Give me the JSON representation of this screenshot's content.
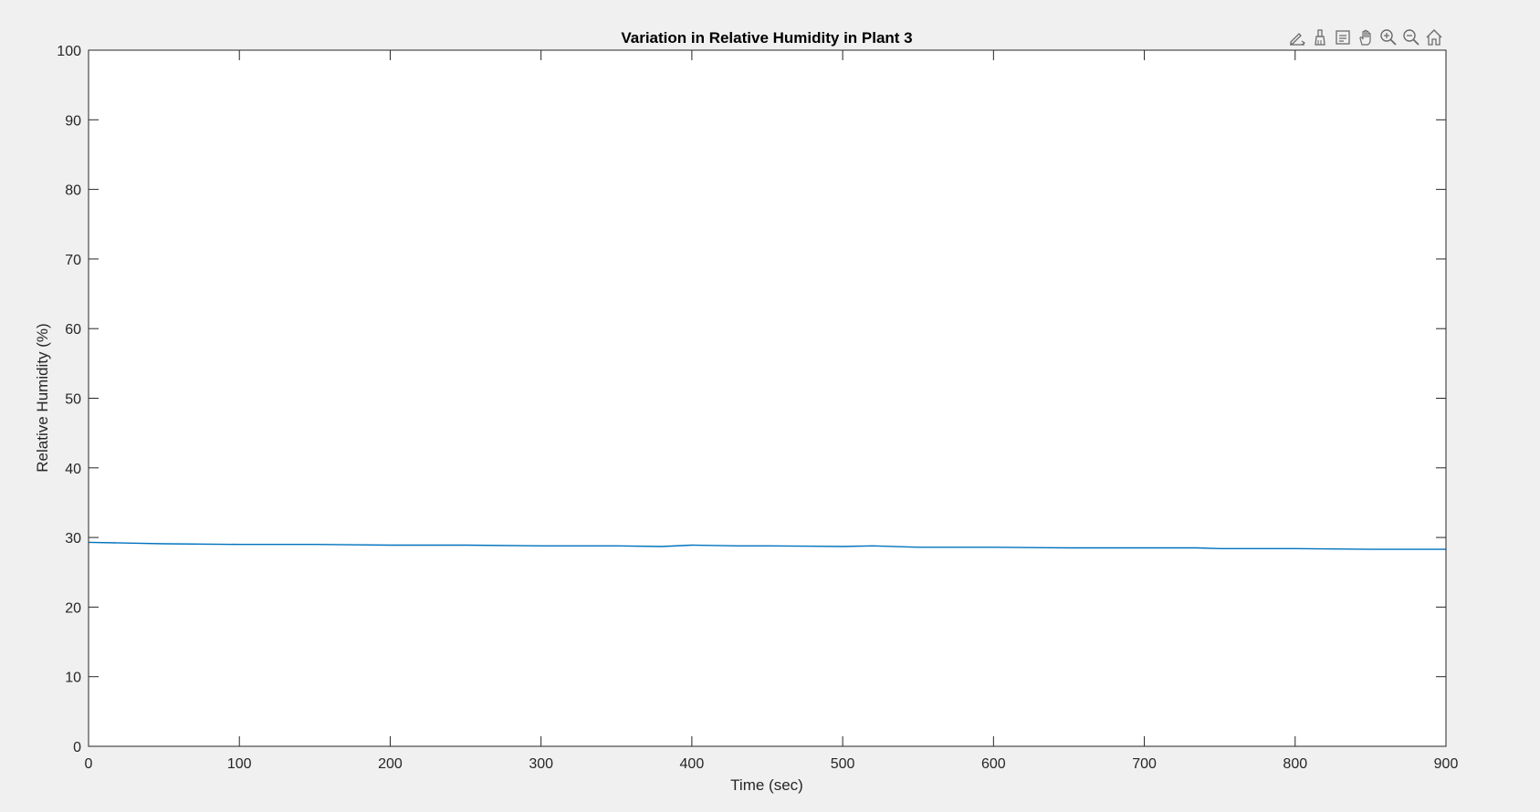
{
  "toolbar": {
    "icons": [
      "edit-icon",
      "brush-icon",
      "data-tips-icon",
      "pan-hand-icon",
      "zoom-in-icon",
      "zoom-out-icon",
      "home-icon"
    ]
  },
  "chart_data": {
    "type": "line",
    "title": "Variation in Relative Humidity in Plant 3",
    "xlabel": "Time (sec)",
    "ylabel": "Relative Humidity (%)",
    "xlim": [
      0,
      900
    ],
    "ylim": [
      0,
      100
    ],
    "xticks": [
      0,
      100,
      200,
      300,
      400,
      500,
      600,
      700,
      800,
      900
    ],
    "yticks": [
      0,
      10,
      20,
      30,
      40,
      50,
      60,
      70,
      80,
      90,
      100
    ],
    "grid": false,
    "series": [
      {
        "color": "#0072bd",
        "x": [
          0,
          25,
          50,
          100,
          150,
          200,
          250,
          300,
          350,
          380,
          400,
          430,
          450,
          500,
          520,
          550,
          600,
          650,
          700,
          735,
          750,
          800,
          850,
          900
        ],
        "y": [
          29.3,
          29.2,
          29.1,
          29.0,
          29.0,
          28.9,
          28.9,
          28.8,
          28.8,
          28.7,
          28.9,
          28.8,
          28.8,
          28.7,
          28.8,
          28.6,
          28.6,
          28.5,
          28.5,
          28.5,
          28.4,
          28.4,
          28.3,
          28.3
        ]
      }
    ]
  }
}
